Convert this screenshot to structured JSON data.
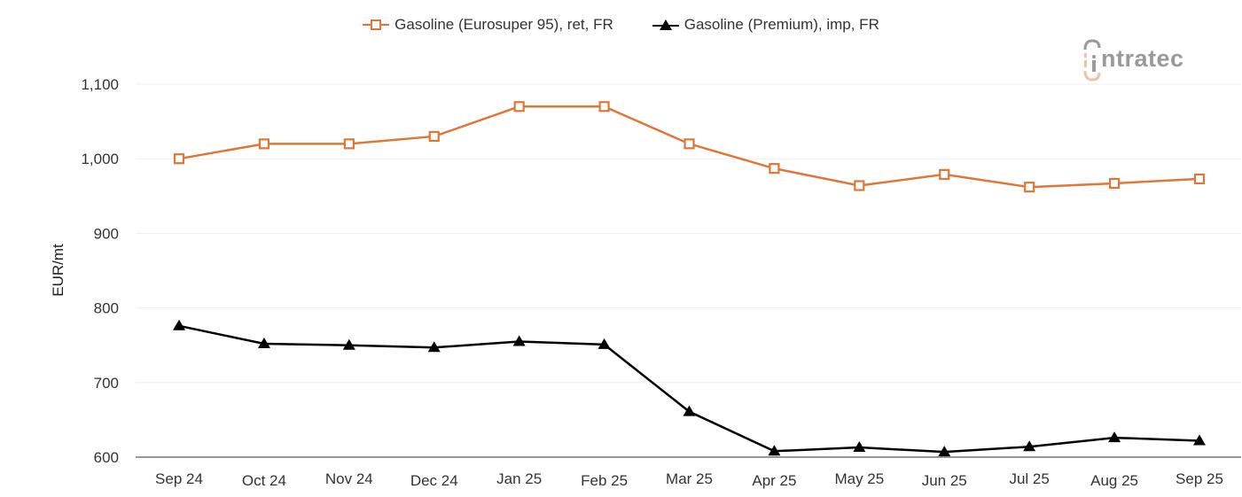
{
  "chart_data": {
    "type": "line",
    "title": "",
    "xlabel": "",
    "ylabel": "EUR/mt",
    "ylim": [
      600,
      1100
    ],
    "yticks": [
      600,
      700,
      800,
      900,
      1000,
      1100
    ],
    "ytick_labels": [
      "600",
      "700",
      "800",
      "900",
      "1,000",
      "1,100"
    ],
    "grid": true,
    "legend_position": "top-center",
    "categories": [
      "Sep 24",
      "Oct 24",
      "Nov 24",
      "Dec 24",
      "Jan 25",
      "Feb 25",
      "Mar 25",
      "Apr 25",
      "May 25",
      "Jun 25",
      "Jul 25",
      "Aug 25",
      "Sep 25"
    ],
    "series": [
      {
        "name": "Gasoline (Eurosuper 95), ret, FR",
        "color": "#e07638",
        "marker": "hollow-square",
        "values": [
          1000,
          1020,
          1020,
          1030,
          1070,
          1070,
          1020,
          987,
          964,
          979,
          962,
          967,
          973
        ]
      },
      {
        "name": "Gasoline (Premium), imp, FR",
        "color": "#000000",
        "marker": "filled-triangle",
        "values": [
          776,
          752,
          750,
          747,
          755,
          751,
          661,
          608,
          613,
          607,
          614,
          626,
          622
        ]
      }
    ]
  },
  "legend": {
    "items": [
      {
        "label": "Gasoline (Eurosuper 95), ret, FR",
        "color": "#e07638"
      },
      {
        "label": "Gasoline (Premium), imp, FR",
        "color": "#000000"
      }
    ]
  },
  "logo": {
    "text": "ntratec",
    "brand": "intratec"
  },
  "axis": {
    "ylabel": "EUR/mt"
  }
}
